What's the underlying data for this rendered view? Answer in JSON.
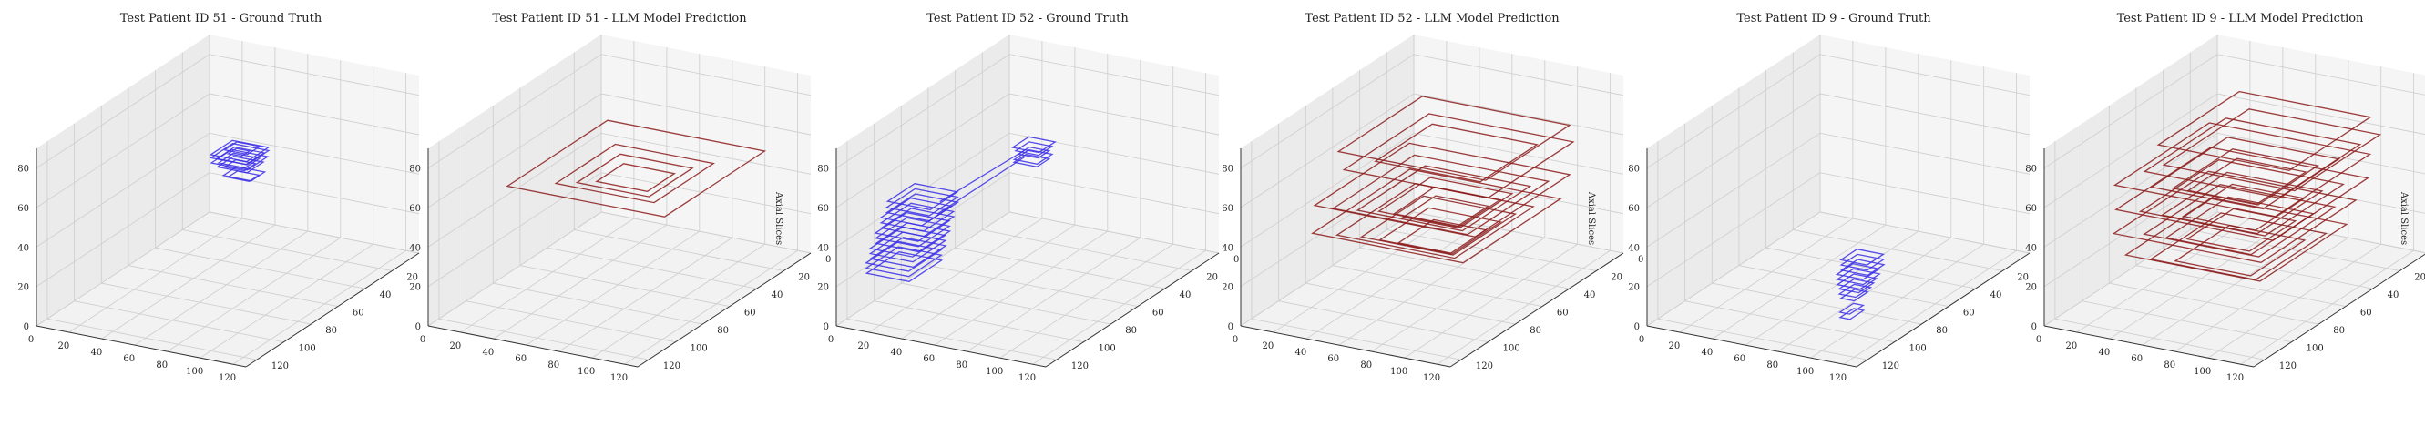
{
  "figure": {
    "panels_count": 6
  },
  "chart_data": [
    {
      "type": "3d-wireframe",
      "title": "Test Patient ID 51 - Ground Truth",
      "zlabel": "",
      "color": "#3a2ee8",
      "xlim": [
        0,
        128
      ],
      "ylim": [
        0,
        128
      ],
      "zlim": [
        0,
        90
      ],
      "xticks": [
        0,
        20,
        40,
        60,
        80,
        100,
        120
      ],
      "yticks": [
        0,
        20,
        40,
        60,
        80,
        100,
        120
      ],
      "zticks": [
        0,
        20,
        40,
        60,
        80
      ],
      "boxes": [
        {
          "x": [
            47,
            69
          ],
          "y": [
            40,
            56
          ],
          "z": 62
        },
        {
          "x": [
            48,
            70
          ],
          "y": [
            41,
            57
          ],
          "z": 61
        },
        {
          "x": [
            50,
            68
          ],
          "y": [
            42,
            55
          ],
          "z": 60
        },
        {
          "x": [
            49,
            71
          ],
          "y": [
            43,
            58
          ],
          "z": 59
        },
        {
          "x": [
            51,
            67
          ],
          "y": [
            44,
            55
          ],
          "z": 58
        },
        {
          "x": [
            52,
            70
          ],
          "y": [
            45,
            57
          ],
          "z": 57
        },
        {
          "x": [
            54,
            66
          ],
          "y": [
            46,
            54
          ],
          "z": 56
        },
        {
          "x": [
            53,
            67
          ],
          "y": [
            44,
            53
          ],
          "z": 64
        },
        {
          "x": [
            58,
            75
          ],
          "y": [
            50,
            60
          ],
          "z": 55
        },
        {
          "x": [
            60,
            73
          ],
          "y": [
            52,
            59
          ],
          "z": 54
        },
        {
          "x": [
            56,
            64
          ],
          "y": [
            48,
            54
          ],
          "z": 63
        }
      ]
    },
    {
      "type": "3d-wireframe",
      "title": "Test Patient ID 51 - LLM Model Prediction",
      "zlabel": "Axial Slices",
      "color": "#8b1a1a",
      "xlim": [
        0,
        128
      ],
      "ylim": [
        0,
        128
      ],
      "zlim": [
        0,
        90
      ],
      "xticks": [
        0,
        20,
        40,
        60,
        80,
        100,
        120
      ],
      "yticks": [
        0,
        20,
        40,
        60,
        80,
        100,
        120
      ],
      "zticks": [
        0,
        20,
        40,
        60,
        80
      ],
      "boxes": [
        {
          "x": [
            22,
            118
          ],
          "y": [
            22,
            96
          ],
          "z": 60
        },
        {
          "x": [
            40,
            100
          ],
          "y": [
            38,
            82
          ],
          "z": 58
        },
        {
          "x": [
            48,
            92
          ],
          "y": [
            44,
            76
          ],
          "z": 57
        },
        {
          "x": [
            55,
            86
          ],
          "y": [
            50,
            70
          ],
          "z": 56
        }
      ]
    },
    {
      "type": "3d-wireframe",
      "title": "Test Patient ID 52 - Ground Truth",
      "zlabel": "",
      "color": "#3a2ee8",
      "xlim": [
        0,
        128
      ],
      "ylim": [
        0,
        128
      ],
      "zlim": [
        0,
        90
      ],
      "xticks": [
        0,
        20,
        40,
        60,
        80,
        100,
        120
      ],
      "yticks": [
        0,
        20,
        40,
        60,
        80,
        100,
        120
      ],
      "zticks": [
        0,
        20,
        40,
        60,
        80
      ],
      "boxes": [
        {
          "x": [
            0,
            26
          ],
          "y": [
            70,
            90
          ],
          "z": 46
        },
        {
          "x": [
            1,
            27
          ],
          "y": [
            71,
            92
          ],
          "z": 44
        },
        {
          "x": [
            2,
            28
          ],
          "y": [
            72,
            93
          ],
          "z": 42
        },
        {
          "x": [
            0,
            25
          ],
          "y": [
            73,
            95
          ],
          "z": 40
        },
        {
          "x": [
            1,
            27
          ],
          "y": [
            74,
            96
          ],
          "z": 38
        },
        {
          "x": [
            2,
            28
          ],
          "y": [
            75,
            97
          ],
          "z": 36
        },
        {
          "x": [
            0,
            26
          ],
          "y": [
            76,
            99
          ],
          "z": 34
        },
        {
          "x": [
            1,
            27
          ],
          "y": [
            77,
            100
          ],
          "z": 32
        },
        {
          "x": [
            2,
            28
          ],
          "y": [
            78,
            101
          ],
          "z": 30
        },
        {
          "x": [
            0,
            26
          ],
          "y": [
            79,
            103
          ],
          "z": 28
        },
        {
          "x": [
            1,
            27
          ],
          "y": [
            80,
            104
          ],
          "z": 26
        },
        {
          "x": [
            2,
            28
          ],
          "y": [
            81,
            105
          ],
          "z": 24
        },
        {
          "x": [
            0,
            26
          ],
          "y": [
            82,
            106
          ],
          "z": 22
        },
        {
          "x": [
            1,
            27
          ],
          "y": [
            83,
            107
          ],
          "z": 20
        },
        {
          "x": [
            2,
            28
          ],
          "y": [
            84,
            108
          ],
          "z": 18
        },
        {
          "x": [
            40,
            56
          ],
          "y": [
            34,
            46
          ],
          "z": 60
        },
        {
          "x": [
            41,
            55
          ],
          "y": [
            35,
            45
          ],
          "z": 58
        },
        {
          "x": [
            42,
            54
          ],
          "y": [
            36,
            44
          ],
          "z": 56
        },
        {
          "x": [
            41,
            55
          ],
          "y": [
            35,
            46
          ],
          "z": 54
        },
        {
          "x": [
            40,
            54
          ],
          "y": [
            36,
            45
          ],
          "z": 52
        }
      ],
      "segments": [
        {
          "from": [
            22,
            78,
            44
          ],
          "to": [
            42,
            40,
            56
          ]
        },
        {
          "from": [
            24,
            82,
            40
          ],
          "to": [
            44,
            42,
            54
          ]
        }
      ]
    },
    {
      "type": "3d-wireframe",
      "title": "Test Patient ID 52 - LLM Model Prediction",
      "zlabel": "Axial Slices",
      "color": "#8b1a1a",
      "xlim": [
        0,
        128
      ],
      "ylim": [
        0,
        128
      ],
      "zlim": [
        0,
        90
      ],
      "xticks": [
        0,
        20,
        40,
        60,
        80,
        100,
        120
      ],
      "yticks": [
        0,
        20,
        40,
        60,
        80,
        100,
        120
      ],
      "zticks": [
        0,
        20,
        40,
        60,
        80
      ],
      "boxes": [
        {
          "x": [
            20,
            110
          ],
          "y": [
            18,
            80
          ],
          "z": 70
        },
        {
          "x": [
            30,
            118
          ],
          "y": [
            25,
            88
          ],
          "z": 66
        },
        {
          "x": [
            36,
            100
          ],
          "y": [
            30,
            72
          ],
          "z": 64
        },
        {
          "x": [
            22,
            120
          ],
          "y": [
            30,
            100
          ],
          "z": 52
        },
        {
          "x": [
            30,
            112
          ],
          "y": [
            36,
            96
          ],
          "z": 50
        },
        {
          "x": [
            40,
            104
          ],
          "y": [
            40,
            90
          ],
          "z": 48
        },
        {
          "x": [
            48,
            98
          ],
          "y": [
            46,
            84
          ],
          "z": 46
        },
        {
          "x": [
            54,
            94
          ],
          "y": [
            50,
            80
          ],
          "z": 44
        },
        {
          "x": [
            58,
            90
          ],
          "y": [
            54,
            78
          ],
          "z": 42
        },
        {
          "x": [
            24,
            116
          ],
          "y": [
            32,
            104
          ],
          "z": 40
        },
        {
          "x": [
            34,
            106
          ],
          "y": [
            40,
            98
          ],
          "z": 38
        },
        {
          "x": [
            44,
            100
          ],
          "y": [
            46,
            92
          ],
          "z": 36
        },
        {
          "x": [
            52,
            96
          ],
          "y": [
            52,
            88
          ],
          "z": 34
        },
        {
          "x": [
            60,
            92
          ],
          "y": [
            58,
            84
          ],
          "z": 32
        }
      ]
    },
    {
      "type": "3d-wireframe",
      "title": "Test Patient ID 9 - Ground Truth",
      "zlabel": "",
      "color": "#3a2ee8",
      "xlim": [
        0,
        128
      ],
      "ylim": [
        0,
        128
      ],
      "zlim": [
        0,
        90
      ],
      "xticks": [
        0,
        20,
        40,
        60,
        80,
        100,
        120
      ],
      "yticks": [
        0,
        20,
        40,
        60,
        80,
        100,
        120
      ],
      "zticks": [
        0,
        20,
        40,
        60,
        80
      ],
      "boxes": [
        {
          "x": [
            92,
            108
          ],
          "y": [
            84,
            96
          ],
          "z": 34
        },
        {
          "x": [
            93,
            109
          ],
          "y": [
            85,
            97
          ],
          "z": 32
        },
        {
          "x": [
            94,
            110
          ],
          "y": [
            86,
            98
          ],
          "z": 30
        },
        {
          "x": [
            92,
            108
          ],
          "y": [
            87,
            99
          ],
          "z": 28
        },
        {
          "x": [
            93,
            109
          ],
          "y": [
            88,
            100
          ],
          "z": 26
        },
        {
          "x": [
            94,
            108
          ],
          "y": [
            89,
            101
          ],
          "z": 24
        },
        {
          "x": [
            95,
            107
          ],
          "y": [
            90,
            101
          ],
          "z": 22
        },
        {
          "x": [
            96,
            106
          ],
          "y": [
            91,
            102
          ],
          "z": 20
        },
        {
          "x": [
            97,
            105
          ],
          "y": [
            92,
            102
          ],
          "z": 18
        },
        {
          "x": [
            98,
            104
          ],
          "y": [
            94,
            104
          ],
          "z": 12
        },
        {
          "x": [
            99,
            105
          ],
          "y": [
            95,
            105
          ],
          "z": 10
        }
      ]
    },
    {
      "type": "3d-wireframe",
      "title": "Test Patient ID 9 - LLM Model Prediction",
      "zlabel": "Axial Slices",
      "color": "#8b1a1a",
      "xlim": [
        0,
        128
      ],
      "ylim": [
        0,
        128
      ],
      "zlim": [
        0,
        90
      ],
      "xticks": [
        0,
        20,
        40,
        60,
        80,
        100,
        120
      ],
      "yticks": [
        0,
        20,
        40,
        60,
        80,
        100,
        120
      ],
      "zticks": [
        0,
        20,
        40,
        60,
        80
      ],
      "boxes": [
        {
          "x": [
            30,
            110
          ],
          "y": [
            20,
            80
          ],
          "z": 75
        },
        {
          "x": [
            40,
            120
          ],
          "y": [
            25,
            88
          ],
          "z": 70
        },
        {
          "x": [
            30,
            112
          ],
          "y": [
            30,
            90
          ],
          "z": 66
        },
        {
          "x": [
            20,
            118
          ],
          "y": [
            30,
            100
          ],
          "z": 62
        },
        {
          "x": [
            36,
            104
          ],
          "y": [
            36,
            92
          ],
          "z": 60
        },
        {
          "x": [
            44,
            96
          ],
          "y": [
            42,
            86
          ],
          "z": 58
        },
        {
          "x": [
            50,
            92
          ],
          "y": [
            46,
            82
          ],
          "z": 56
        },
        {
          "x": [
            24,
            120
          ],
          "y": [
            34,
            104
          ],
          "z": 52
        },
        {
          "x": [
            34,
            110
          ],
          "y": [
            40,
            98
          ],
          "z": 50
        },
        {
          "x": [
            44,
            102
          ],
          "y": [
            46,
            94
          ],
          "z": 48
        },
        {
          "x": [
            52,
            96
          ],
          "y": [
            52,
            88
          ],
          "z": 46
        },
        {
          "x": [
            26,
            116
          ],
          "y": [
            38,
            108
          ],
          "z": 42
        },
        {
          "x": [
            38,
            108
          ],
          "y": [
            44,
            100
          ],
          "z": 40
        },
        {
          "x": [
            48,
            100
          ],
          "y": [
            50,
            96
          ],
          "z": 38
        },
        {
          "x": [
            56,
            94
          ],
          "y": [
            56,
            90
          ],
          "z": 36
        },
        {
          "x": [
            30,
            112
          ],
          "y": [
            40,
            104
          ],
          "z": 30
        },
        {
          "x": [
            42,
            106
          ],
          "y": [
            48,
            100
          ],
          "z": 28
        },
        {
          "x": [
            52,
            98
          ],
          "y": [
            54,
            94
          ],
          "z": 26
        }
      ]
    }
  ]
}
